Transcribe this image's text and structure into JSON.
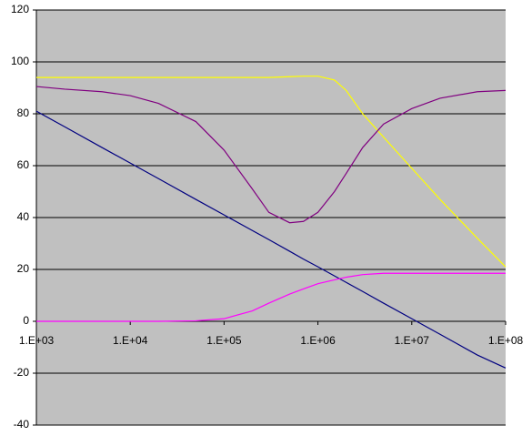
{
  "chart_data": {
    "type": "line",
    "xscale": "log",
    "grid": true,
    "plot_background": "#c0c0c0",
    "x": [
      1000,
      2000,
      5000,
      10000,
      20000,
      50000,
      100000,
      200000,
      300000,
      500000,
      700000,
      1000000,
      1500000,
      2000000,
      3000000,
      5000000,
      10000000,
      20000000,
      50000000,
      100000000
    ],
    "series": [
      {
        "color": "#ffff00",
        "values": [
          94,
          94,
          94,
          94,
          94,
          94,
          94,
          94,
          94,
          94.3,
          94.5,
          94.5,
          93,
          89,
          80,
          71,
          59,
          47,
          32,
          21
        ]
      },
      {
        "color": "#800080",
        "values": [
          90.5,
          89.5,
          88.5,
          87,
          84,
          77,
          66,
          51,
          42,
          38,
          38.5,
          42,
          50,
          57,
          67,
          76,
          82,
          86,
          88.5,
          89
        ]
      },
      {
        "color": "#000080",
        "values": [
          81,
          75,
          67,
          61,
          55,
          47,
          41,
          35,
          31.5,
          27,
          24,
          21,
          17.5,
          15,
          11.5,
          7,
          1,
          -5,
          -13,
          -18
        ]
      },
      {
        "color": "#ff00ff",
        "values": [
          0,
          0,
          0,
          0,
          0,
          0.2,
          1,
          4,
          7,
          10.5,
          12.5,
          14.5,
          16,
          17,
          18,
          18.5,
          18.5,
          18.5,
          18.5,
          18.5
        ]
      }
    ],
    "xlim": [
      1000,
      100000000
    ],
    "xticks": [
      {
        "value": 1000,
        "label": "1.E+03"
      },
      {
        "value": 10000,
        "label": "1.E+04"
      },
      {
        "value": 100000,
        "label": "1.E+05"
      },
      {
        "value": 1000000,
        "label": "1.E+06"
      },
      {
        "value": 10000000,
        "label": "1.E+07"
      },
      {
        "value": 100000000,
        "label": "1.E+08"
      }
    ],
    "ylim": [
      -40,
      120
    ],
    "yticks": [
      -40,
      -20,
      0,
      20,
      40,
      60,
      80,
      100,
      120
    ]
  }
}
